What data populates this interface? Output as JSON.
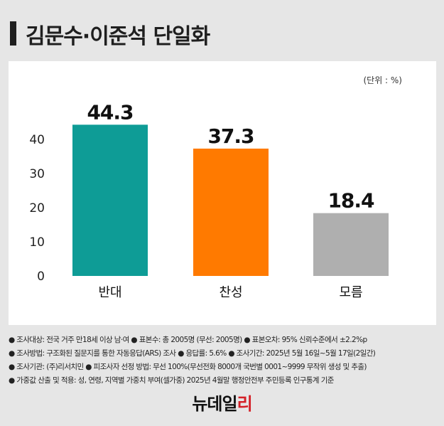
{
  "title": "김문수·이준석 단일화",
  "unit_label": "(단위 : %)",
  "chart_data": {
    "type": "bar",
    "categories": [
      "반대",
      "찬성",
      "모름"
    ],
    "values": [
      44.3,
      37.3,
      18.4
    ],
    "value_labels": [
      "44.3",
      "37.3",
      "18.4"
    ],
    "colors": [
      "#0e9c96",
      "#ff7a00",
      "#afafaf"
    ],
    "ylim": [
      0,
      50
    ],
    "yticks": [
      0,
      10,
      20,
      30,
      40
    ],
    "title": "",
    "xlabel": "",
    "ylabel": "",
    "grid": false
  },
  "notes": [
    "● 조사대상: 전국 거주 만18세 이상 남·여 ● 표본수: 총 2005명 (무선: 2005명) ● 표본오차: 95% 신뢰수준에서 ±2.2%p",
    "● 조사방법: 구조화된 질문지를 통한 자동응답(ARS) 조사 ● 응답률: 5.6% ● 조사기간: 2025년 5월 16일~5월 17일(2일간)",
    "● 조사기관: (주)리서치민 ● 피조사자 선정 방법: 무선 100%(무선전화 8000개 국번별 0001~9999 무작위 생성 및 추출)",
    "● 가중값 산출 및 적용: 성, 연령, 지역별 가중치 부여(셀가중) 2025년 4월말 행정안전부 주민등록 인구통계 기준"
  ],
  "logo": {
    "part1": "뉴데일",
    "part2": "리"
  }
}
